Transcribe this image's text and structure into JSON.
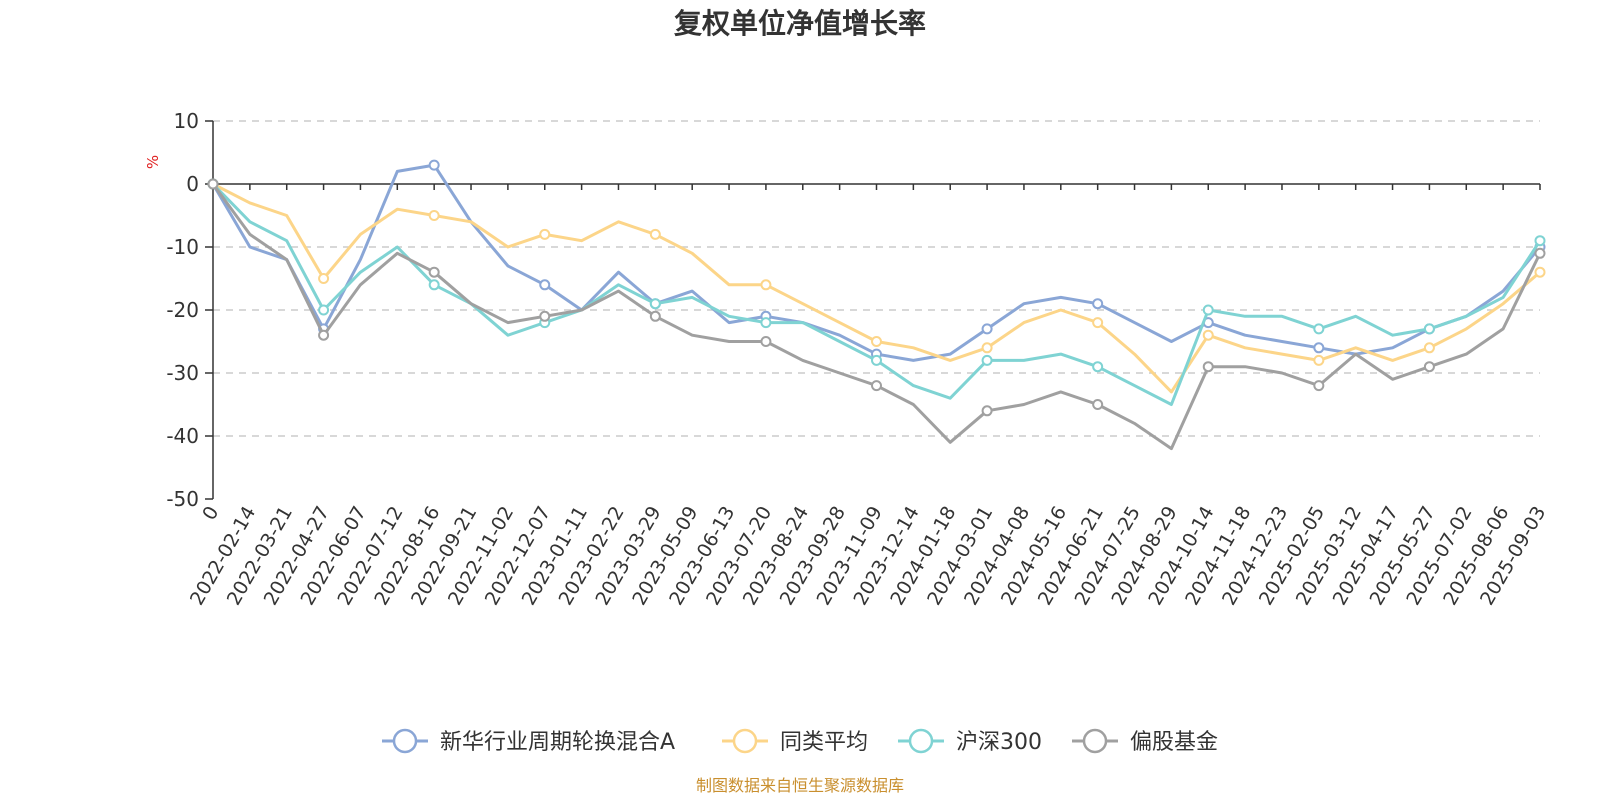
{
  "chart_data": {
    "type": "line",
    "title": "复权单位净值增长率",
    "ylabel": "%",
    "ylim": [
      -50,
      10
    ],
    "yticks": [
      10,
      0,
      -10,
      -20,
      -30,
      -40,
      -50
    ],
    "grid": true,
    "legend_position": "bottom",
    "x_categories": [
      "0",
      "2022-02-14",
      "2022-03-21",
      "2022-04-27",
      "2022-06-07",
      "2022-07-12",
      "2022-08-16",
      "2022-09-21",
      "2022-11-02",
      "2022-12-07",
      "2023-01-11",
      "2023-02-22",
      "2023-03-29",
      "2023-05-09",
      "2023-06-13",
      "2023-07-20",
      "2023-08-24",
      "2023-09-28",
      "2023-11-09",
      "2023-12-14",
      "2024-01-18",
      "2024-03-01",
      "2024-04-08",
      "2024-05-16",
      "2024-06-21",
      "2024-07-25",
      "2024-08-29",
      "2024-10-14",
      "2024-11-18",
      "2024-12-23",
      "2025-02-05",
      "2025-03-12",
      "2025-04-17",
      "2025-05-27",
      "2025-07-02",
      "2025-08-06",
      "2025-09-03"
    ],
    "series": [
      {
        "name": "新华行业周期轮换混合A",
        "color": "#8aa6d6",
        "values": [
          0,
          -10,
          -12,
          -23,
          -12,
          2,
          3,
          -6,
          -13,
          -16,
          -20,
          -14,
          -19,
          -17,
          -22,
          -21,
          -22,
          -24,
          -27,
          -28,
          -27,
          -23,
          -19,
          -18,
          -19,
          -22,
          -25,
          -22,
          -24,
          -25,
          -26,
          -27,
          -26,
          -23,
          -21,
          -17,
          -10
        ]
      },
      {
        "name": "同类平均",
        "color": "#fcd589",
        "values": [
          0,
          -3,
          -5,
          -15,
          -8,
          -4,
          -5,
          -6,
          -10,
          -8,
          -9,
          -6,
          -8,
          -11,
          -16,
          -16,
          -19,
          -22,
          -25,
          -26,
          -28,
          -26,
          -22,
          -20,
          -22,
          -27,
          -33,
          -24,
          -26,
          -27,
          -28,
          -26,
          -28,
          -26,
          -23,
          -19,
          -14
        ]
      },
      {
        "name": "沪深300",
        "color": "#7fd3d3",
        "values": [
          0,
          -6,
          -9,
          -20,
          -14,
          -10,
          -16,
          -19,
          -24,
          -22,
          -20,
          -16,
          -19,
          -18,
          -21,
          -22,
          -22,
          -25,
          -28,
          -32,
          -34,
          -28,
          -28,
          -27,
          -29,
          -32,
          -35,
          -20,
          -21,
          -21,
          -23,
          -21,
          -24,
          -23,
          -21,
          -18,
          -9
        ]
      },
      {
        "name": "偏股基金",
        "color": "#a0a0a0",
        "values": [
          0,
          -8,
          -12,
          -24,
          -16,
          -11,
          -14,
          -19,
          -22,
          -21,
          -20,
          -17,
          -21,
          -24,
          -25,
          -25,
          -28,
          -30,
          -32,
          -35,
          -41,
          -36,
          -35,
          -33,
          -35,
          -38,
          -42,
          -29,
          -29,
          -30,
          -32,
          -27,
          -31,
          -29,
          -27,
          -23,
          -11
        ]
      }
    ]
  },
  "source_text": "制图数据来自恒生聚源数据库"
}
